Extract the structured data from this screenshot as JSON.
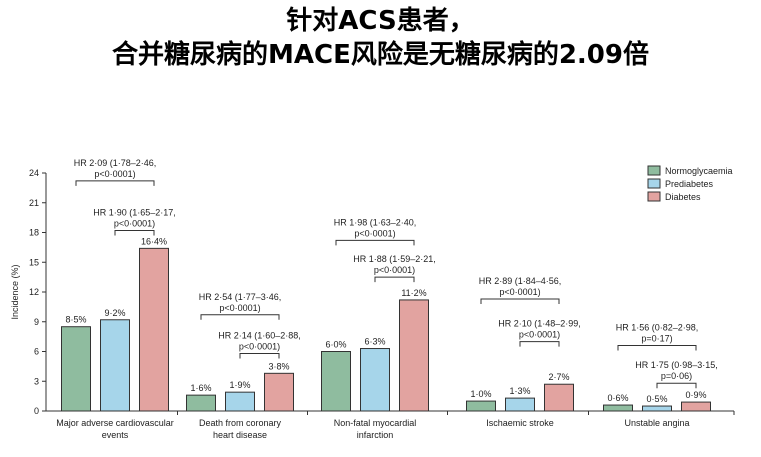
{
  "title": {
    "line1": "针对ACS患者，",
    "line2": "合并糖尿病的MACE风险是无糖尿病的2.09倍"
  },
  "chart_data": {
    "type": "bar",
    "ylabel": "Incidence (%)",
    "ylim": [
      0,
      24
    ],
    "yticks": [
      0,
      3,
      6,
      9,
      12,
      15,
      18,
      21,
      24
    ],
    "legend_position": "top-right",
    "categories": [
      [
        "Major adverse cardiovascular",
        "events"
      ],
      [
        "Death from coronary",
        "heart disease"
      ],
      [
        "Non-fatal myocardial",
        "infarction"
      ],
      [
        "Ischaemic stroke"
      ],
      [
        "Unstable angina"
      ]
    ],
    "series": [
      {
        "name": "Normoglycaemia",
        "color": "#8fbc9f",
        "values": [
          8.5,
          1.6,
          6.0,
          1.0,
          0.6
        ],
        "labels": [
          "8·5%",
          "1·6%",
          "6·0%",
          "1·0%",
          "0·6%"
        ]
      },
      {
        "name": "Prediabetes",
        "color": "#a6d5ea",
        "values": [
          9.2,
          1.9,
          6.3,
          1.3,
          0.5
        ],
        "labels": [
          "9·2%",
          "1·9%",
          "6·3%",
          "1·3%",
          "0·5%"
        ]
      },
      {
        "name": "Diabetes",
        "color": "#e2a3a0",
        "values": [
          16.4,
          3.8,
          11.2,
          2.7,
          0.9
        ],
        "labels": [
          "16·4%",
          "3·8%",
          "11·2%",
          "2·7%",
          "0·9%"
        ]
      }
    ],
    "comparisons": [
      {
        "category": 0,
        "from": 0,
        "to": 2,
        "level": 23.2,
        "lines": [
          "HR 2·09 (1·78–2·46,",
          "p<0·0001)"
        ]
      },
      {
        "category": 0,
        "from": 1,
        "to": 2,
        "level": 18.2,
        "lines": [
          "HR 1·90 (1·65–2·17,",
          "p<0·0001)"
        ]
      },
      {
        "category": 1,
        "from": 0,
        "to": 2,
        "level": 9.7,
        "lines": [
          "HR 2·54 (1·77–3·46,",
          "p<0·0001)"
        ]
      },
      {
        "category": 1,
        "from": 1,
        "to": 2,
        "level": 5.8,
        "lines": [
          "HR 2·14 (1·60–2·88,",
          "p<0·0001)"
        ]
      },
      {
        "category": 2,
        "from": 0,
        "to": 2,
        "level": 17.2,
        "lines": [
          "HR 1·98 (1·63–2·40,",
          "p<0·0001)"
        ]
      },
      {
        "category": 2,
        "from": 1,
        "to": 2,
        "level": 13.5,
        "lines": [
          "HR 1·88 (1·59–2·21,",
          "p<0·0001)"
        ]
      },
      {
        "category": 3,
        "from": 0,
        "to": 2,
        "level": 11.3,
        "lines": [
          "HR 2·89 (1·84–4·56,",
          "p<0·0001)"
        ]
      },
      {
        "category": 3,
        "from": 1,
        "to": 2,
        "level": 7.0,
        "lines": [
          "HR 2·10 (1·48–2·99,",
          "p<0·0001)"
        ]
      },
      {
        "category": 4,
        "from": 0,
        "to": 2,
        "level": 6.6,
        "lines": [
          "HR 1·56 (0·82–2·98,",
          "p=0·17)"
        ]
      },
      {
        "category": 4,
        "from": 1,
        "to": 2,
        "level": 2.8,
        "lines": [
          "HR 1·75 (0·98–3·15,",
          "p=0·06)"
        ]
      }
    ]
  }
}
